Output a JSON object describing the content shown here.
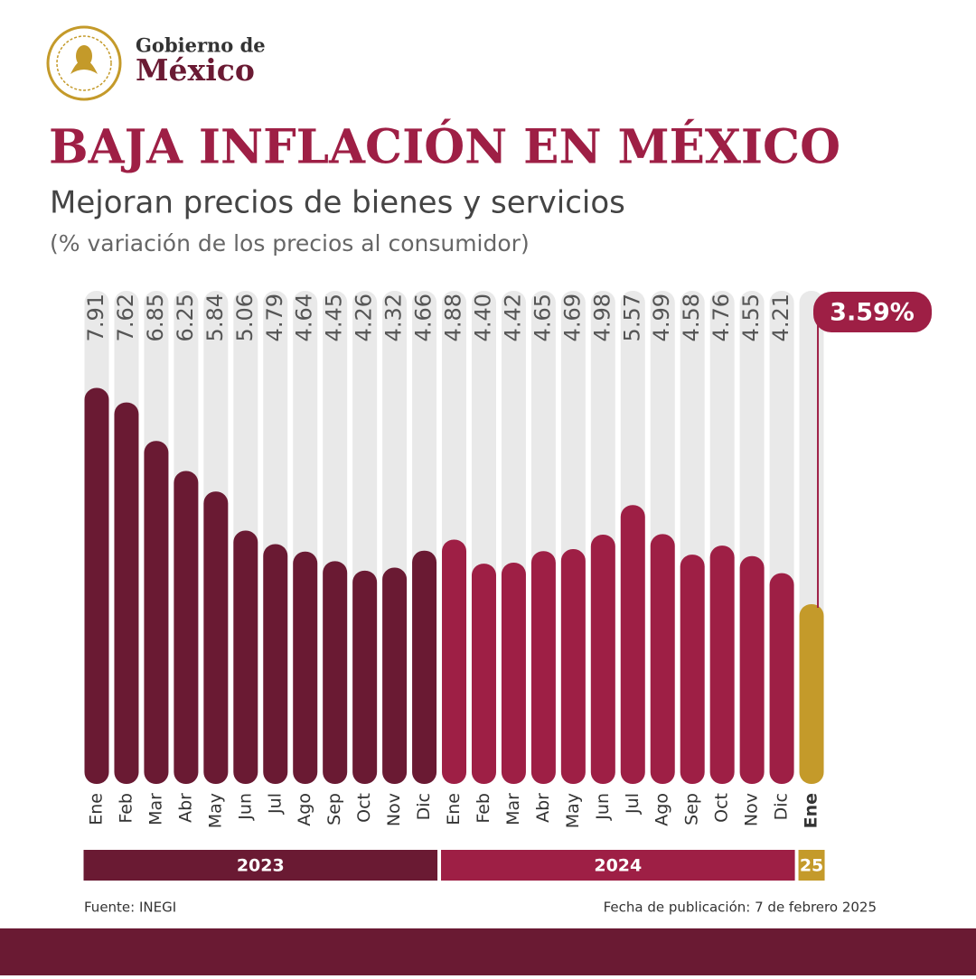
{
  "header": {
    "brand_top": "Gobierno de",
    "brand_bottom": "México"
  },
  "chart_data": {
    "type": "bar",
    "title": "BAJA INFLACIÓN EN MÉXICO",
    "subtitle": "Mejoran precios de bienes y servicios",
    "unit_note": "(% variación de los precios al consumidor)",
    "ylim": [
      0,
      9.85
    ],
    "series": [
      {
        "name": "2023",
        "color": "#6a1a33",
        "categories": [
          "Ene",
          "Feb",
          "Mar",
          "Abr",
          "May",
          "Jun",
          "Jul",
          "Ago",
          "Sep",
          "Oct",
          "Nov",
          "Dic"
        ],
        "values": [
          7.91,
          7.62,
          6.85,
          6.25,
          5.84,
          5.06,
          4.79,
          4.64,
          4.45,
          4.26,
          4.32,
          4.66
        ],
        "value_labels": [
          "7.91",
          "7.62",
          "6.85",
          "6.25",
          "5.84",
          "5.06",
          "4.79",
          "4.64",
          "4.45",
          "4.26",
          "4.32",
          "4.66"
        ]
      },
      {
        "name": "2024",
        "color": "#9e1f45",
        "categories": [
          "Ene",
          "Feb",
          "Mar",
          "Abr",
          "May",
          "Jun",
          "Jul",
          "Ago",
          "Sep",
          "Oct",
          "Nov",
          "Dic"
        ],
        "values": [
          4.88,
          4.4,
          4.42,
          4.65,
          4.69,
          4.98,
          5.57,
          4.99,
          4.58,
          4.76,
          4.55,
          4.21
        ],
        "value_labels": [
          "4.88",
          "4.40",
          "4.42",
          "4.65",
          "4.69",
          "4.98",
          "5.57",
          "4.99",
          "4.58",
          "4.76",
          "4.55",
          "4.21"
        ]
      },
      {
        "name": "25",
        "color": "#c49a2a",
        "categories": [
          "Ene"
        ],
        "values": [
          3.59
        ],
        "value_labels": [
          "3.59%"
        ]
      }
    ],
    "source": "Fuente: INEGI",
    "published": "Fecha de publicación: 7 de febrero 2025"
  }
}
